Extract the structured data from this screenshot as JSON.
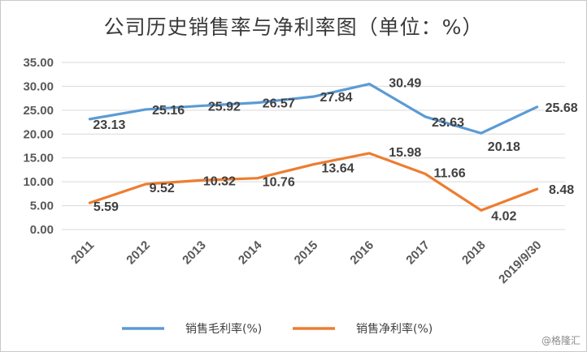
{
  "chart_data": {
    "type": "line",
    "title": "公司历史销售率与净利率图（单位：%）",
    "categories": [
      "2011",
      "2012",
      "2013",
      "2014",
      "2015",
      "2016",
      "2017",
      "2018",
      "2019/9/30"
    ],
    "ylim": [
      0,
      35
    ],
    "yticks": [
      "0.00",
      "5.00",
      "10.00",
      "15.00",
      "20.00",
      "25.00",
      "30.00",
      "35.00"
    ],
    "grid": true,
    "legend_position": "bottom",
    "series": [
      {
        "name": "销售毛利率(%)",
        "color": "#5b9bd5",
        "values": [
          23.13,
          25.16,
          25.92,
          26.57,
          27.84,
          30.49,
          23.63,
          20.18,
          25.68
        ],
        "labels": [
          "23.13",
          "25.16",
          "25.92",
          "26.57",
          "27.84",
          "30.49",
          "23.63",
          "20.18",
          "25.68"
        ]
      },
      {
        "name": "销售净利率(%)",
        "color": "#ed7d31",
        "values": [
          5.59,
          9.52,
          10.32,
          10.76,
          13.64,
          15.98,
          11.66,
          4.02,
          8.48
        ],
        "labels": [
          "5.59",
          "9.52",
          "10.32",
          "10.76",
          "13.64",
          "15.98",
          "11.66",
          "4.02",
          "8.48"
        ]
      }
    ]
  },
  "watermark": "@格隆汇"
}
